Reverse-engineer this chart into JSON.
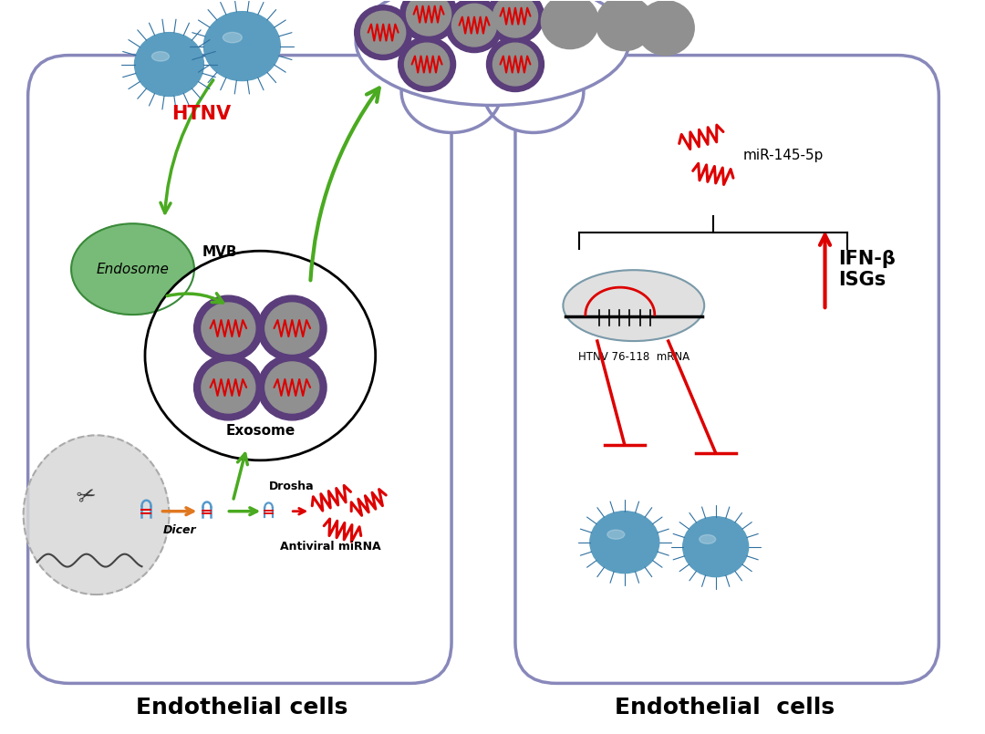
{
  "bg_color": "#ffffff",
  "cell_border_color": "#8888bb",
  "green": "#4aaa20",
  "red": "#dd0000",
  "purple": "#5a3d7a",
  "orange": "#e07820",
  "blue_gray": "#5a9dc0",
  "dark_blue": "#2a6a94",
  "endosome_fill": "#78bb78",
  "endosome_border": "#3a8a3a",
  "gray_exo": "#909090",
  "label_left": "Endothelial cells",
  "label_right": "Endothelial  cells",
  "htnv_label": "HTNV",
  "mvb_label": "MVB",
  "exosome_label": "Exosome",
  "endosome_label": "Endosome",
  "mir_label": "miR-145-5p",
  "ifn_label": "IFN-β\nISGs",
  "htnv_mrna_label": "HTNV 76-118  mRNA",
  "dicer_label": "Dicer",
  "drosha_label": "Drosha",
  "antiviral_label": "Antiviral miRNA"
}
